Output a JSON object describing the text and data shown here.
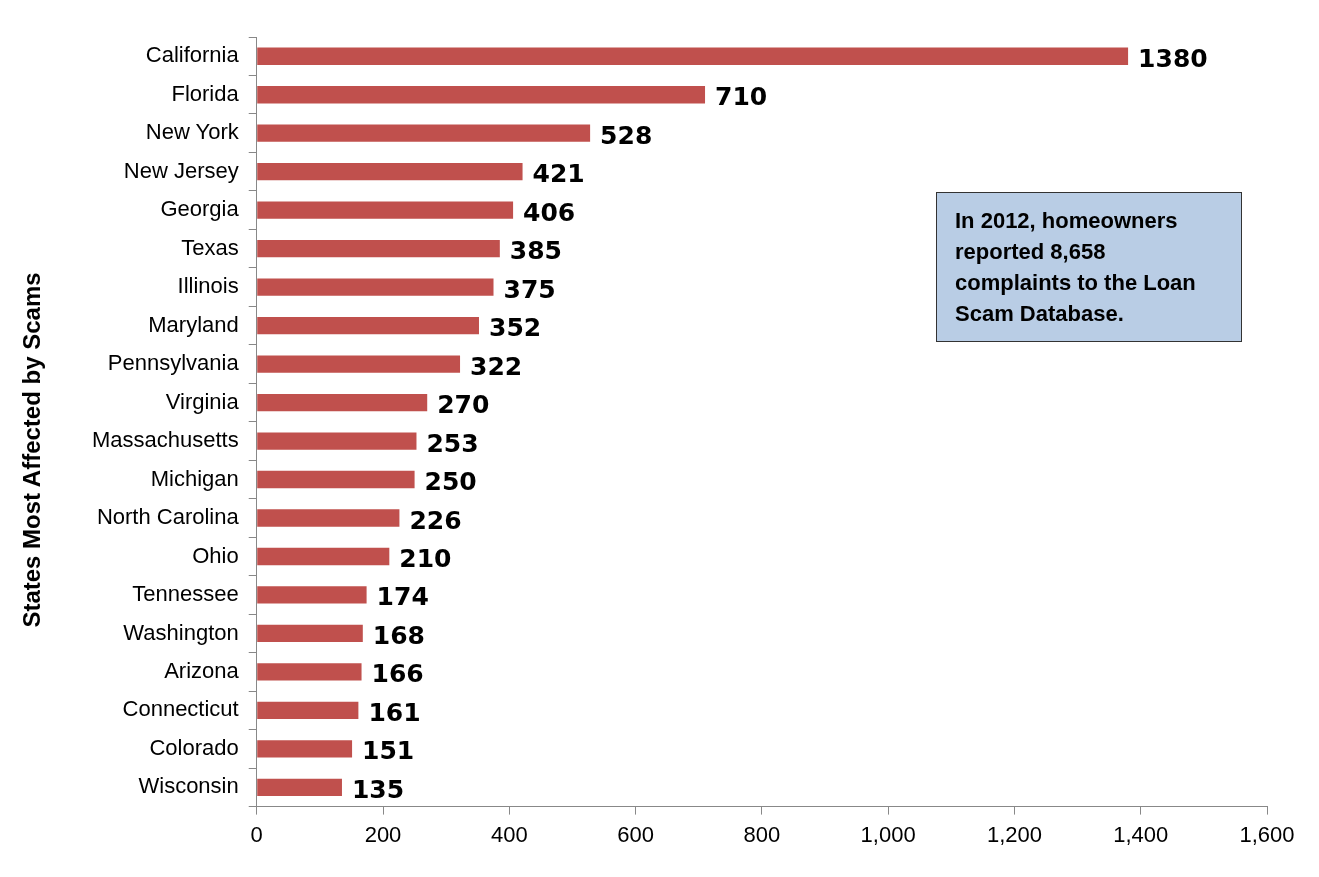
{
  "chart_data": {
    "type": "bar",
    "orientation": "horizontal",
    "ylabel": "States Most Affected by Scams",
    "categories": [
      "California",
      "Florida",
      "New York",
      "New Jersey",
      "Georgia",
      "Texas",
      "Illinois",
      "Maryland",
      "Pennsylvania",
      "Virginia",
      "Massachusetts",
      "Michigan",
      "North Carolina",
      "Ohio",
      "Tennessee",
      "Washington",
      "Arizona",
      "Connecticut",
      "Colorado",
      "Wisconsin"
    ],
    "values": [
      1380,
      710,
      528,
      421,
      406,
      385,
      375,
      352,
      322,
      270,
      253,
      250,
      226,
      210,
      174,
      168,
      166,
      161,
      151,
      135
    ],
    "color": "#c0504d",
    "data_labels": true,
    "grid": false,
    "legend": false,
    "xlim": [
      0,
      1600
    ],
    "xticks": [
      0,
      200,
      400,
      600,
      800,
      {
        "value": 1000,
        "label": "1,000"
      },
      {
        "value": 1200,
        "label": "1,200"
      },
      {
        "value": 1400,
        "label": "1,400"
      },
      {
        "value": 1600,
        "label": "1,600"
      }
    ],
    "annotations": [
      "In 2012, homeowners reported 8,658 complaints to the Loan Scam Database."
    ]
  }
}
